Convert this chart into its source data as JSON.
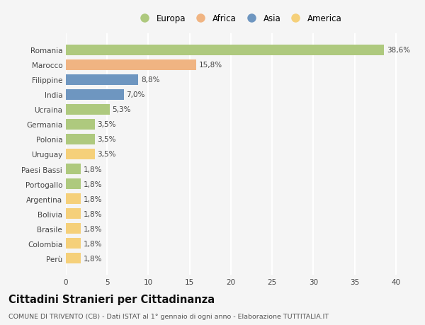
{
  "countries": [
    "Romania",
    "Marocco",
    "Filippine",
    "India",
    "Ucraina",
    "Germania",
    "Polonia",
    "Uruguay",
    "Paesi Bassi",
    "Portogallo",
    "Argentina",
    "Bolivia",
    "Brasile",
    "Colombia",
    "Perù"
  ],
  "values": [
    38.6,
    15.8,
    8.8,
    7.0,
    5.3,
    3.5,
    3.5,
    3.5,
    1.8,
    1.8,
    1.8,
    1.8,
    1.8,
    1.8,
    1.8
  ],
  "continents": [
    "Europa",
    "Africa",
    "Asia",
    "Asia",
    "Europa",
    "Europa",
    "Europa",
    "America",
    "Europa",
    "Europa",
    "America",
    "America",
    "America",
    "America",
    "America"
  ],
  "labels": [
    "38,6%",
    "15,8%",
    "8,8%",
    "7,0%",
    "5,3%",
    "3,5%",
    "3,5%",
    "3,5%",
    "1,8%",
    "1,8%",
    "1,8%",
    "1,8%",
    "1,8%",
    "1,8%",
    "1,8%"
  ],
  "continent_colors": {
    "Europa": "#aec97e",
    "Africa": "#f0b482",
    "Asia": "#6e96c0",
    "America": "#f5d07a"
  },
  "legend_order": [
    "Europa",
    "Africa",
    "Asia",
    "America"
  ],
  "xlim": [
    0,
    42
  ],
  "xticks": [
    0,
    5,
    10,
    15,
    20,
    25,
    30,
    35,
    40
  ],
  "title": "Cittadini Stranieri per Cittadinanza",
  "subtitle": "COMUNE DI TRIVENTO (CB) - Dati ISTAT al 1° gennaio di ogni anno - Elaborazione TUTTITALIA.IT",
  "background_color": "#f5f5f5",
  "bar_height": 0.72,
  "grid_color": "#ffffff",
  "label_fontsize": 7.5,
  "tick_fontsize": 7.5,
  "title_fontsize": 10.5,
  "subtitle_fontsize": 6.8
}
